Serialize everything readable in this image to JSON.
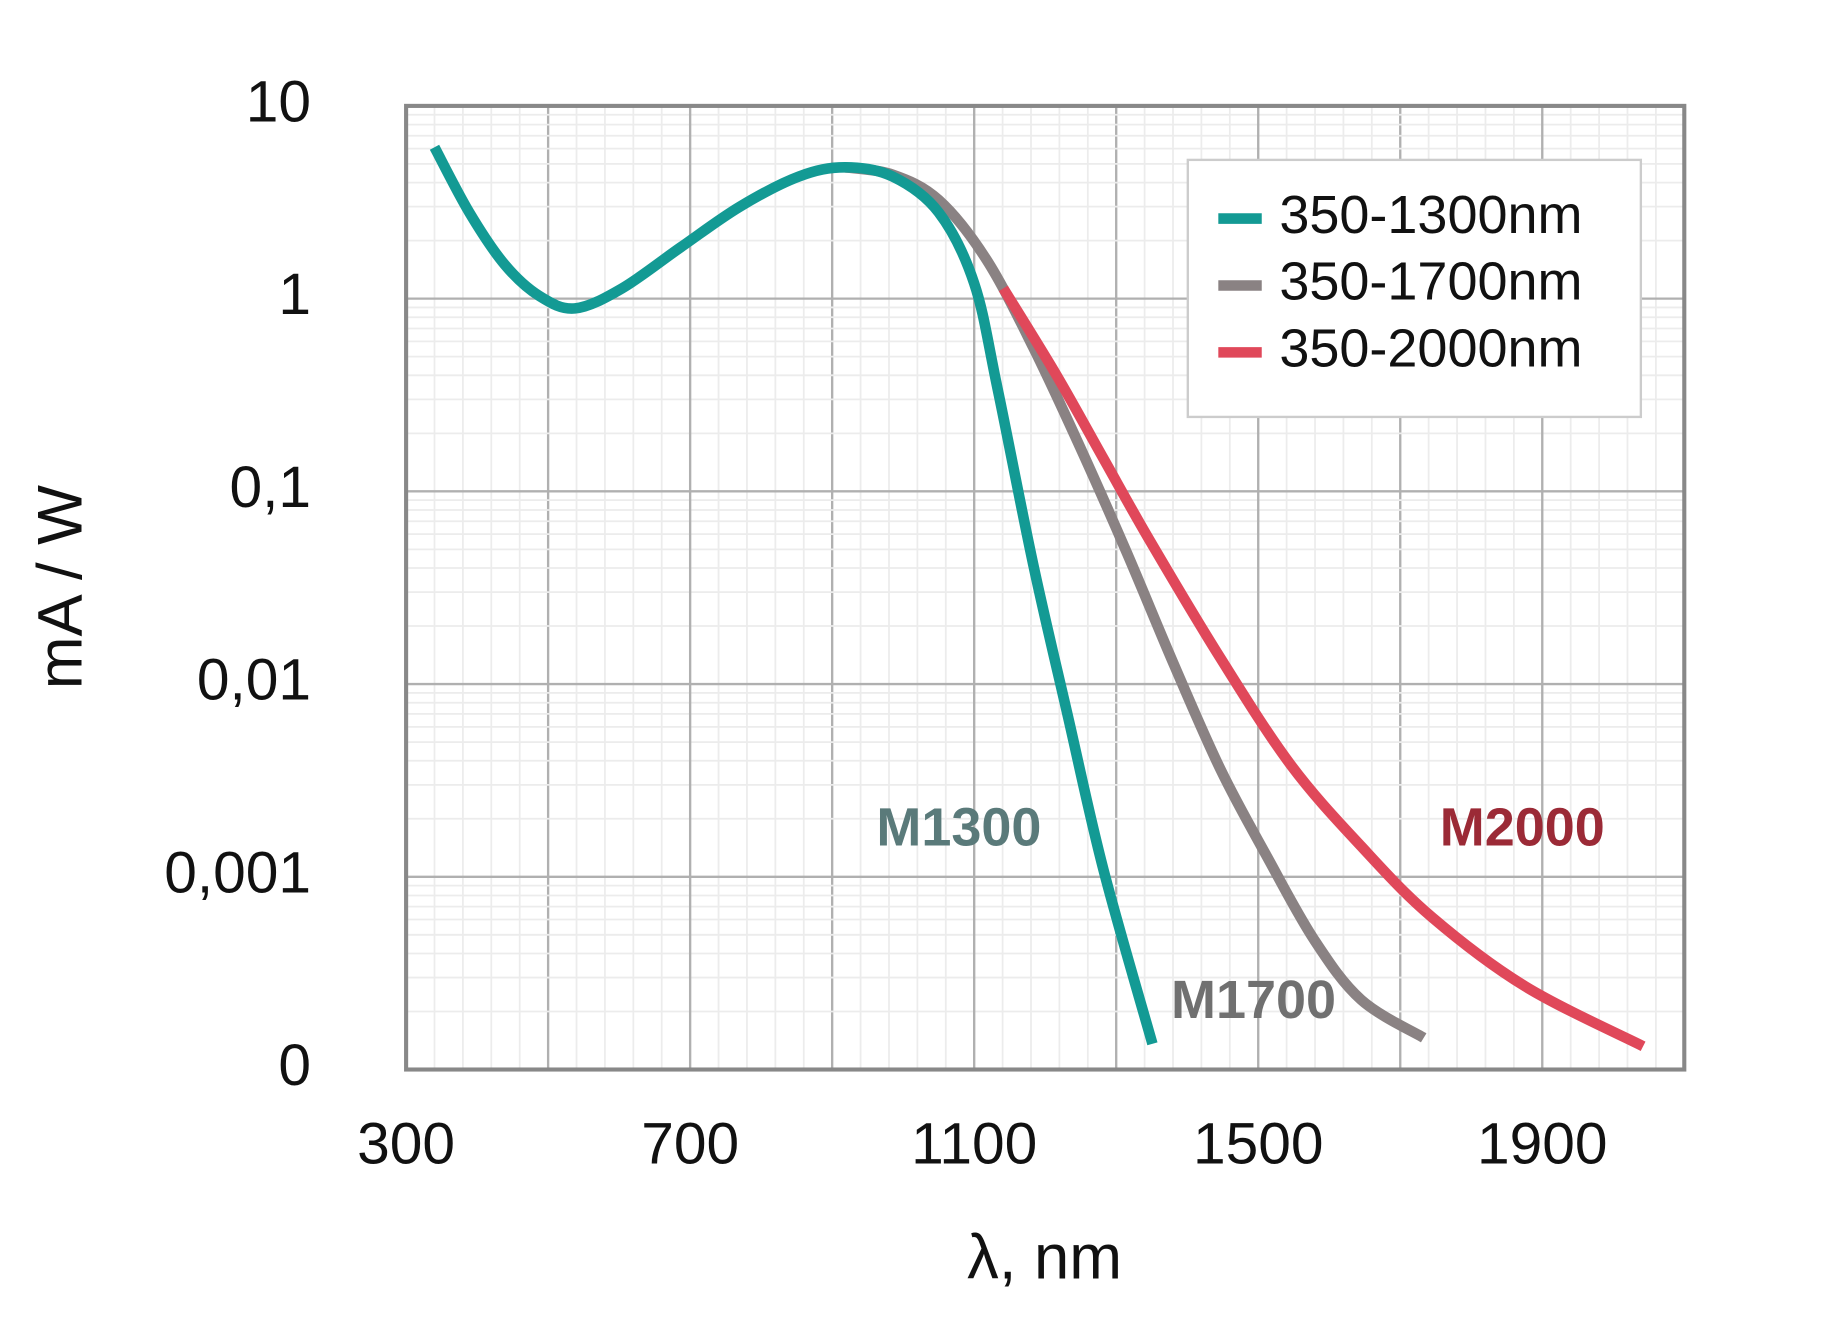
{
  "chart_data": {
    "type": "line",
    "x_label": "λ, nm",
    "y_label": "mA / W",
    "log_y": true,
    "grid": true,
    "legend": "upper right",
    "xlim": [
      300,
      2100
    ],
    "xticks": [
      300,
      700,
      1100,
      1500,
      1900
    ],
    "ylim": [
      0.0001,
      10
    ],
    "yticks": [
      {
        "value": 0.0001,
        "label": "0"
      },
      {
        "value": 0.001,
        "label": "0,001"
      },
      {
        "value": 0.01,
        "label": "0,01"
      },
      {
        "value": 0.1,
        "label": "0,1"
      },
      1,
      10
    ],
    "series": [
      {
        "name": "350-1300nm",
        "color": "#139a94",
        "x": [
          340,
          389,
          439,
          488,
          538,
          604,
          687,
          770,
          853,
          918,
          985,
          1050,
          1100,
          1133,
          1183,
          1232,
          1282,
          1351
        ],
        "values": [
          6.1,
          2.8,
          1.5,
          1.03,
          0.89,
          1.13,
          1.85,
          3.0,
          4.3,
          4.8,
          4.3,
          2.8,
          1.2,
          0.34,
          0.042,
          0.0068,
          0.00109,
          0.000136
        ]
      },
      {
        "name": "350-1700nm",
        "color": "#8a8283",
        "x": [
          918,
          985,
          1050,
          1117,
          1183,
          1249,
          1315,
          1381,
          1447,
          1513,
          1579,
          1645,
          1733
        ],
        "values": [
          4.8,
          4.4,
          3.25,
          1.6,
          0.56,
          0.17,
          0.048,
          0.0127,
          0.0036,
          0.00126,
          0.00047,
          0.00023,
          0.000146
        ]
      },
      {
        "name": "350-2000nm",
        "color": "#e0485a",
        "x": [
          1141,
          1216,
          1282,
          1348,
          1447,
          1546,
          1645,
          1744,
          1876,
          2042
        ],
        "values": [
          1.13,
          0.4,
          0.148,
          0.055,
          0.0136,
          0.0038,
          0.00144,
          0.00062,
          0.00027,
          0.000132
        ]
      }
    ],
    "annotations": [
      {
        "text": "M1300",
        "color": "#5a7a7a"
      },
      {
        "text": "M1700",
        "color": "#707070"
      },
      {
        "text": "M2000",
        "color": "#9b2a36"
      }
    ]
  }
}
